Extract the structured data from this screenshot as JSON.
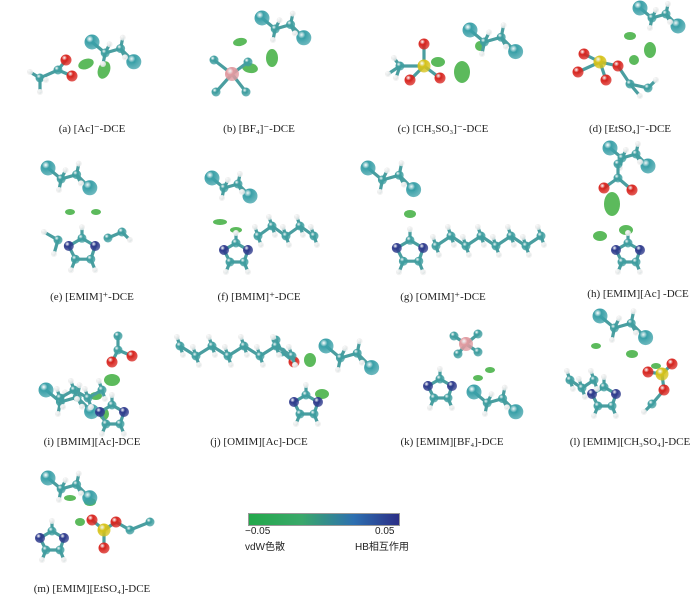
{
  "panels": [
    {
      "id": "a",
      "caption": "(a) [Ac]⁻-DCE"
    },
    {
      "id": "b",
      "caption": "(b) [BF₄]⁻-DCE"
    },
    {
      "id": "c",
      "caption": "(c) [CH₃SO₃]⁻-DCE"
    },
    {
      "id": "d",
      "caption": "(d) [EtSO₄]⁻-DCE"
    },
    {
      "id": "e",
      "caption": "(e) [EMIM]⁺-DCE"
    },
    {
      "id": "f",
      "caption": "(f) [BMIM]⁺-DCE"
    },
    {
      "id": "g",
      "caption": "(g) [OMIM]⁺-DCE"
    },
    {
      "id": "h",
      "caption": "(h) [EMIM][Ac] -DCE"
    },
    {
      "id": "i",
      "caption": "(i) [BMIM][Ac]-DCE"
    },
    {
      "id": "j",
      "caption": "(j) [OMIM][Ac]-DCE"
    },
    {
      "id": "k",
      "caption": "(k) [EMIM][BF₄]-DCE"
    },
    {
      "id": "l",
      "caption": "(l) [EMIM][CH₃SO₄]-DCE"
    },
    {
      "id": "m",
      "caption": "(m) [EMIM][EtSO₄]-DCE"
    }
  ],
  "colorbar": {
    "min_label": "−0.05",
    "max_label": "0.05",
    "left_label": "vdW色散",
    "right_label": "HB相互作用",
    "colors": [
      "#22a84a",
      "#2d6fb0",
      "#2b2e86"
    ]
  },
  "atom_colors": {
    "C": "#3f9ea0",
    "H": "#eeeeee",
    "O": "#d8251f",
    "N": "#2e3a8c",
    "S": "#d6c21a",
    "B": "#e09aa0",
    "Cl": "#3aa0a8",
    "vdw_surface": "#3fae3f"
  }
}
